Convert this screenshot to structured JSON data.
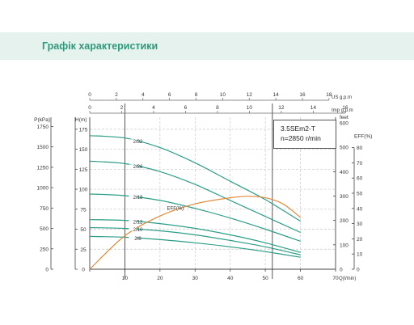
{
  "page": {
    "title": "Графік характеристики"
  },
  "model": {
    "name": "3.5SEm2-T",
    "speed": "n=2850 r/min"
  },
  "chart_data": {
    "type": "line",
    "title": "",
    "x_axis": {
      "unit_label": "Q(l/min)",
      "ticks": [
        0,
        10,
        20,
        30,
        40,
        50,
        60,
        70
      ],
      "range": [
        0,
        70
      ]
    },
    "top_axis_us": {
      "unit_label": "US g.p.m",
      "ticks": [
        0,
        2,
        4,
        6,
        8,
        10,
        12,
        14,
        16,
        18
      ]
    },
    "top_axis_imp": {
      "unit_label": "Imp g.p.m",
      "ticks": [
        0,
        2,
        4,
        6,
        8,
        10,
        12,
        14,
        16
      ]
    },
    "y_axis_kpa": {
      "label": "P(kPa)",
      "ticks": [
        0,
        250,
        500,
        750,
        1000,
        1250,
        1500,
        1750
      ]
    },
    "y_axis_h": {
      "label": "H(m)",
      "ticks": [
        0,
        25,
        50,
        75,
        100,
        125,
        150,
        175
      ],
      "range": [
        0,
        190
      ]
    },
    "y_axis_feet": {
      "label": "feet",
      "ticks": [
        0,
        100,
        200,
        300,
        400,
        500,
        600
      ]
    },
    "y_axis_eff": {
      "label": "EFF(%)",
      "ticks": [
        0,
        10,
        20,
        30,
        40,
        50,
        60,
        70,
        80
      ],
      "range": [
        0,
        100
      ]
    },
    "operating_range_lines_q": [
      10,
      52
    ],
    "series": [
      {
        "name": "2/32",
        "color": "#2a9d86",
        "x": [
          0,
          10,
          20,
          30,
          40,
          50,
          60
        ],
        "y": [
          167,
          164,
          152,
          133,
          110,
          87,
          60
        ]
      },
      {
        "name": "2/26",
        "color": "#2a9d86",
        "x": [
          0,
          10,
          20,
          30,
          40,
          50,
          60
        ],
        "y": [
          135,
          132,
          122,
          106,
          86,
          66,
          46
        ]
      },
      {
        "name": "2/18",
        "color": "#2a9d86",
        "x": [
          0,
          10,
          20,
          30,
          40,
          50,
          60
        ],
        "y": [
          94,
          92,
          86,
          76,
          64,
          50,
          35
        ]
      },
      {
        "name": "2/12",
        "color": "#2a9d86",
        "x": [
          0,
          10,
          20,
          30,
          40,
          50,
          60
        ],
        "y": [
          62,
          61,
          57,
          51,
          43,
          33,
          21
        ]
      },
      {
        "name": "2/10",
        "color": "#2a9d86",
        "x": [
          0,
          10,
          20,
          30,
          40,
          50,
          60
        ],
        "y": [
          52,
          51,
          48,
          43,
          36,
          28,
          18
        ]
      },
      {
        "name": "2/8",
        "color": "#2a9d86",
        "x": [
          0,
          10,
          20,
          30,
          40,
          50,
          60
        ],
        "y": [
          41,
          40,
          37,
          33,
          28,
          22,
          15
        ]
      }
    ],
    "efficiency": {
      "name": "EFF(%)",
      "color": "#e08a3a",
      "x": [
        0,
        10,
        20,
        30,
        40,
        45,
        50,
        55,
        60
      ],
      "y": [
        0,
        22,
        35,
        43,
        47,
        48,
        47,
        43,
        34
      ]
    }
  }
}
